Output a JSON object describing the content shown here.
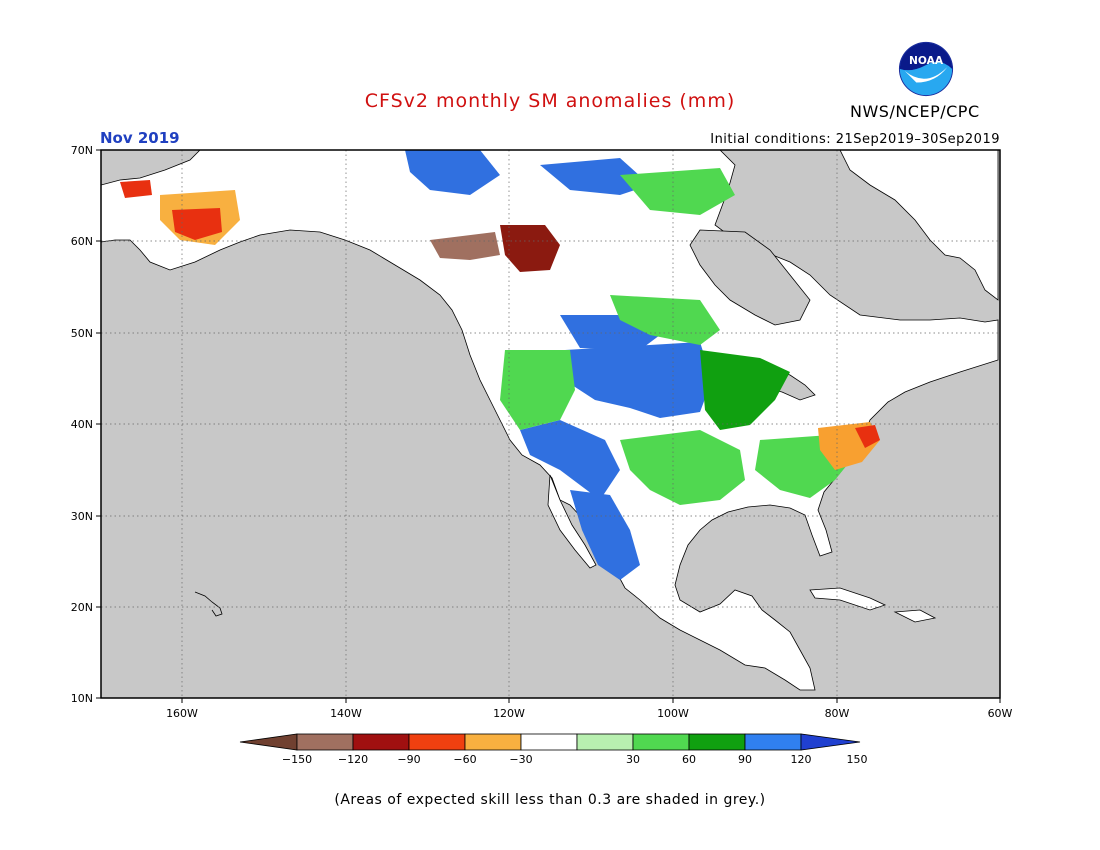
{
  "title": "CFSv2 monthly SM anomalies (mm)",
  "organization": "NWS/NCEP/CPC",
  "logo_text": "NOAA",
  "forecast_month": "Nov 2019",
  "initial_conditions": "Initial conditions: 21Sep2019–30Sep2019",
  "footnote": "(Areas of expected skill less than 0.3 are shaded in grey.)",
  "map": {
    "lon_range": [
      -172,
      -60
    ],
    "lat_range": [
      10,
      70
    ],
    "lat_labels": [
      "70N",
      "60N",
      "50N",
      "40N",
      "30N",
      "20N",
      "10N"
    ],
    "lon_labels": [
      "160W",
      "140W",
      "120W",
      "100W",
      "80W",
      "60W"
    ],
    "background_color": "#c8c8c8",
    "coast_color": "#000000",
    "gridline_style": "dotted"
  },
  "colorbar": {
    "ticks": [
      "−150",
      "−120",
      "−90",
      "−60",
      "−30",
      "30",
      "60",
      "90",
      "120",
      "150"
    ],
    "colors": [
      "#a07060",
      "#a01010",
      "#f04010",
      "#f8b040",
      "#ffffff",
      "#b8f0b0",
      "#50d850",
      "#10a010",
      "#3080f0"
    ],
    "low_end_color": "#704030",
    "high_end_color": "#2040d0"
  },
  "regions": [
    {
      "name": "central-plains-wet",
      "color": "#3070e0"
    },
    {
      "name": "mexico-wet",
      "color": "#3070e0"
    },
    {
      "name": "midwest-green",
      "color": "#10a010"
    },
    {
      "name": "mid-atlantic-dry",
      "color": "#f8a030"
    },
    {
      "name": "western-canada-dry",
      "color": "#8b1a10"
    },
    {
      "name": "alaska-dry",
      "color": "#f8b040"
    }
  ]
}
